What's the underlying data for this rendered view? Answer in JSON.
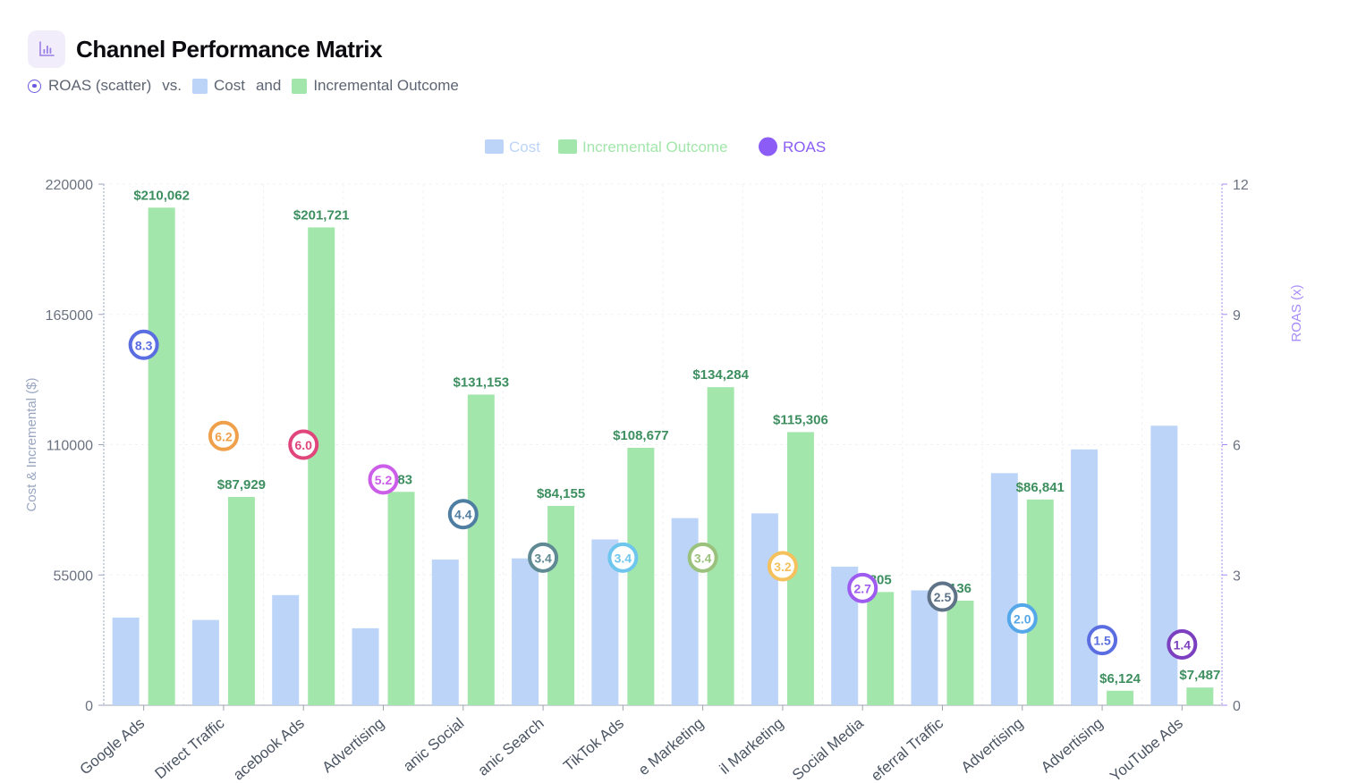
{
  "header": {
    "title": "Channel Performance Matrix",
    "subtitle": {
      "roas": "ROAS (scatter)",
      "vs": "vs.",
      "cost": "Cost",
      "and": "and",
      "incremental": "Incremental Outcome"
    }
  },
  "colors": {
    "cost": "#bcd4f8",
    "incremental": "#a3e6ab",
    "roas": "#8b5cf6",
    "value_label": "#3d8f60",
    "axis_left": "#9aa6c0",
    "axis_right": "#a78bfa"
  },
  "chart_data": {
    "type": "bar",
    "title": "Channel Performance Matrix",
    "legend": [
      "Cost",
      "Incremental Outcome",
      "ROAS"
    ],
    "legend_position": "top-center",
    "grid": true,
    "categories": [
      "Google Ads",
      "Direct Traffic",
      "Facebook Ads",
      "Display Advertising",
      "Organic Social",
      "Organic Search",
      "TikTok Ads",
      "Affiliate Marketing",
      "Email Marketing",
      "Social Media",
      "Referral Traffic",
      "Advertising",
      "Advertising",
      "YouTube Ads"
    ],
    "category_tick_labels": [
      "Google Ads",
      "Direct Traffic",
      "acebook Ads",
      "Advertising",
      "anic Social",
      "anic Search",
      "TikTok Ads",
      "e Marketing",
      "il Marketing",
      "Social Media",
      "eferral Traffic",
      "Advertising",
      "Advertising",
      "YouTube Ads"
    ],
    "ylabel": "Cost & Incremental ($)",
    "y2label": "ROAS (x)",
    "ylim": [
      0,
      220000
    ],
    "y2lim": [
      0,
      12
    ],
    "yticks": [
      "0",
      "55000",
      "110000",
      "165000",
      "220000"
    ],
    "y2ticks": [
      "0",
      "3",
      "6",
      "9",
      "12"
    ],
    "series": [
      {
        "name": "Cost",
        "type": "bar",
        "axis": "left",
        "values": [
          37000,
          36000,
          46500,
          32500,
          61500,
          62000,
          70000,
          79000,
          81000,
          58500,
          48500,
          98000,
          108000,
          118000
        ]
      },
      {
        "name": "Incremental Outcome",
        "type": "bar",
        "axis": "left",
        "values": [
          210062,
          87929,
          201721,
          90083,
          131153,
          84155,
          108677,
          134284,
          115306,
          47805,
          44136,
          86841,
          6124,
          7487
        ],
        "labels": [
          "$210,062",
          "$87,929",
          "$201,721",
          "083",
          "$131,153",
          "$84,155",
          "$108,677",
          "$134,284",
          "$115,306",
          "805",
          "136",
          "$86,841",
          "$6,124",
          "$7,487"
        ]
      },
      {
        "name": "ROAS",
        "type": "scatter",
        "axis": "right",
        "values": [
          8.3,
          6.2,
          6.0,
          5.2,
          4.4,
          3.4,
          3.4,
          3.4,
          3.2,
          2.7,
          2.5,
          2.0,
          1.5,
          1.4
        ],
        "labels": [
          "8.3",
          "6.2",
          "6.0",
          "5.2",
          "4.4",
          "3.4",
          "3.4",
          "3.4",
          "3.2",
          "2.7",
          "2.5",
          "2.0",
          "1.5",
          "1.4"
        ],
        "colors": [
          "#5b6ee1",
          "#f0a04b",
          "#e0457b",
          "#cc5de8",
          "#4f7ea3",
          "#5f8a94",
          "#6ec6ee",
          "#9bc27d",
          "#f4c15d",
          "#9e5bf0",
          "#5e7387",
          "#54a7e8",
          "#5b6ee1",
          "#7b3fc0"
        ]
      }
    ]
  }
}
